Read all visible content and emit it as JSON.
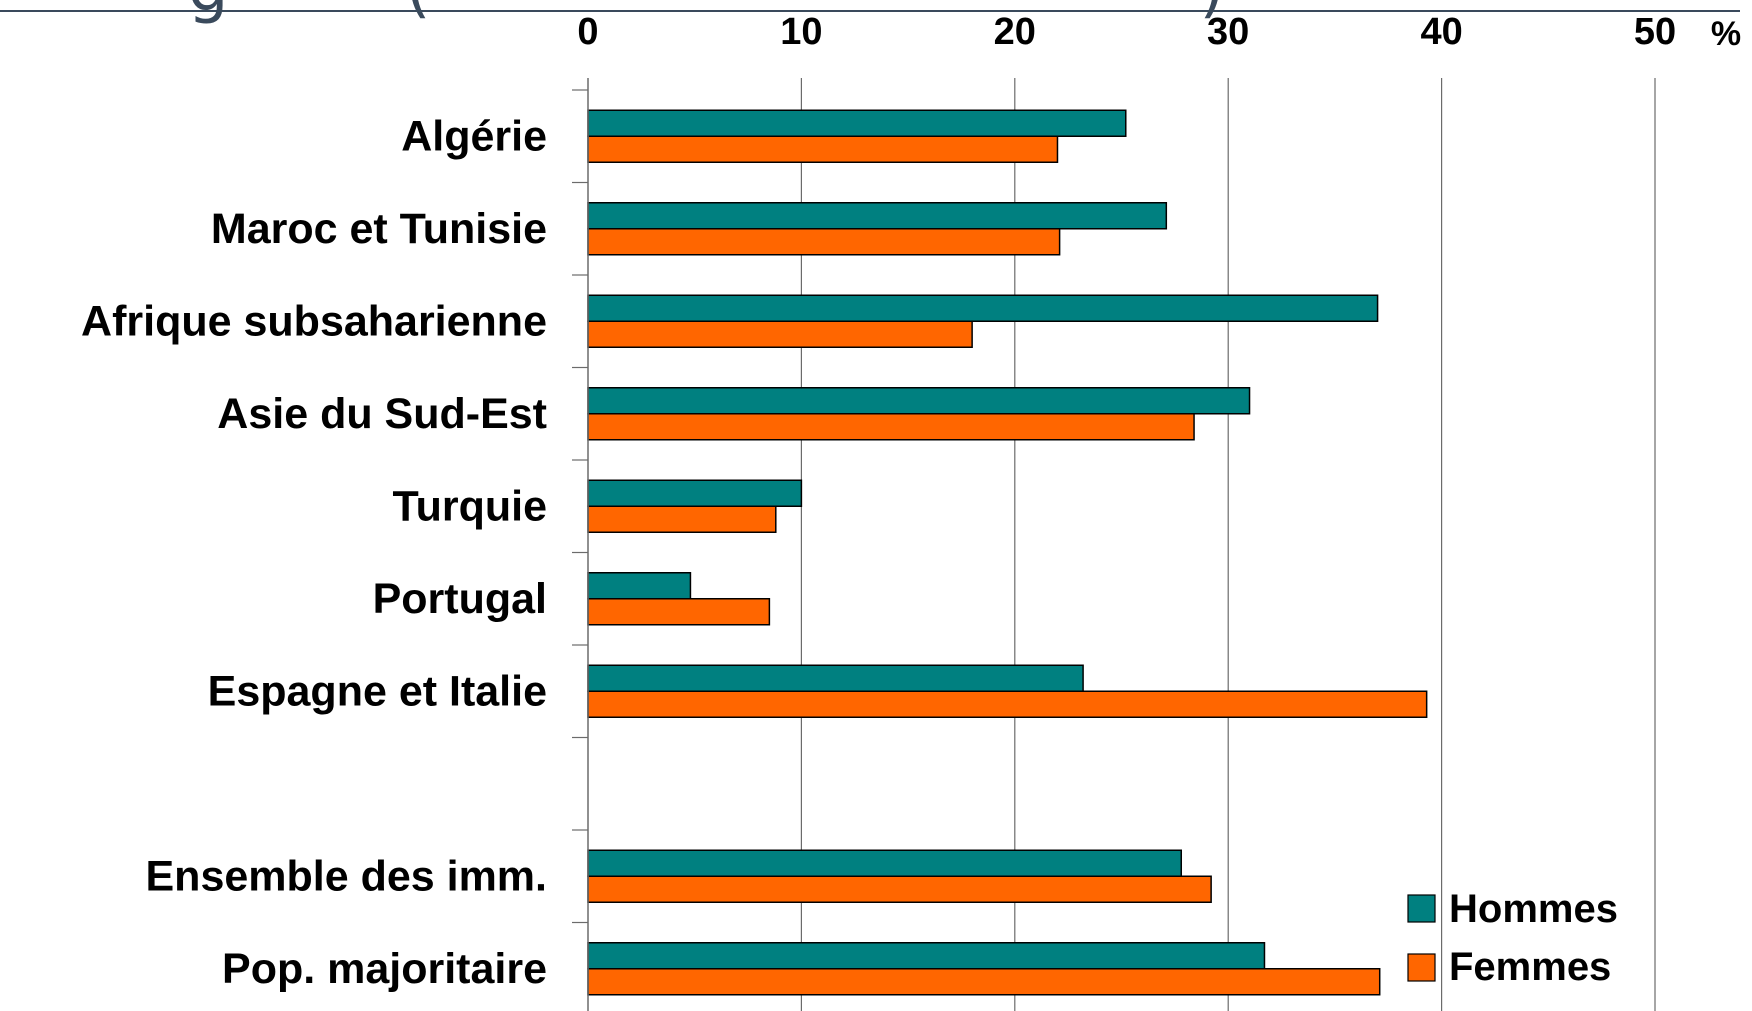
{
  "chart_data": {
    "type": "bar",
    "orientation": "horizontal",
    "title_fragments": [
      "g",
      "(",
      ")"
    ],
    "xlim": [
      0,
      50
    ],
    "x_ticks": [
      "0",
      "10",
      "20",
      "30",
      "40",
      "50"
    ],
    "x_unit": "%",
    "x_axis_position": "top",
    "grid": "vertical",
    "legend_position": "bottom-right",
    "colors": {
      "Hommes": "#008080",
      "Femmes": "#ff6600"
    },
    "categories": [
      "Algérie",
      "Maroc et Tunisie",
      "Afrique subsaharienne",
      "Asie du Sud-Est",
      "Turquie",
      "Portugal",
      "Espagne et Italie",
      "",
      "Ensemble des imm.",
      "Pop. majoritaire"
    ],
    "series": [
      {
        "name": "Hommes",
        "values": [
          25.2,
          27.1,
          37.0,
          31.0,
          10.0,
          4.8,
          23.2,
          null,
          27.8,
          31.7
        ]
      },
      {
        "name": "Femmes",
        "values": [
          22.0,
          22.1,
          18.0,
          28.4,
          8.8,
          8.5,
          39.3,
          null,
          29.2,
          37.1
        ]
      }
    ]
  }
}
